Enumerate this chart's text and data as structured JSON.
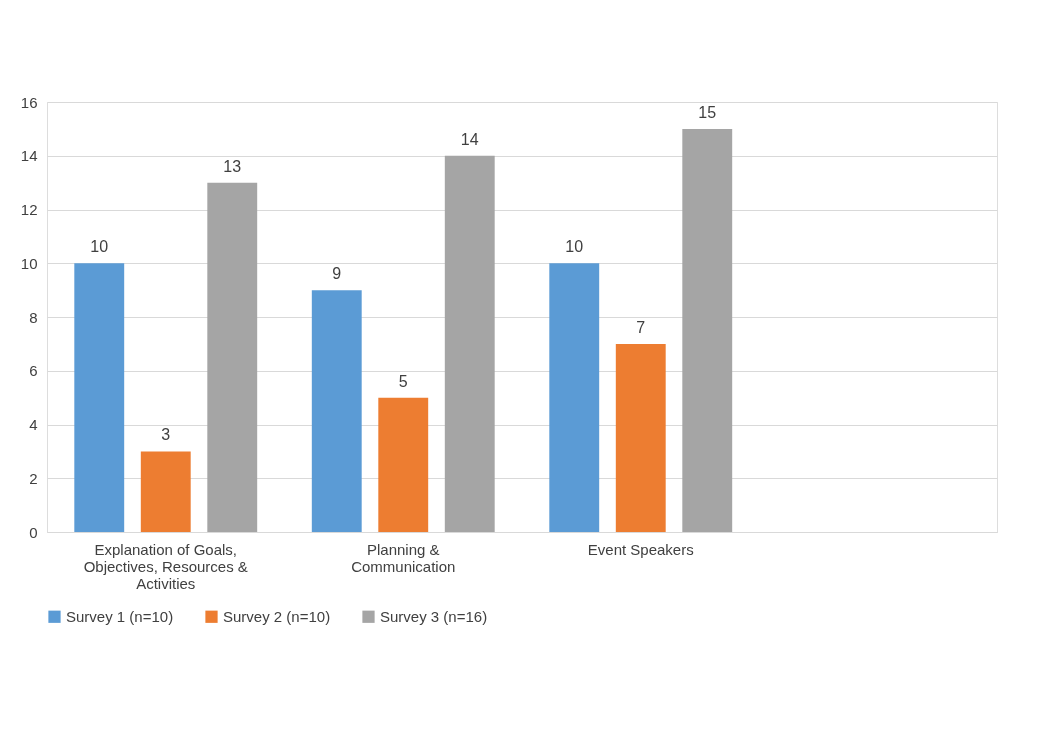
{
  "chart_data": {
    "type": "bar",
    "categories": [
      "Explanation of Goals, Objectives, Resources & Activities",
      "Planning & Communication",
      "Event Speakers",
      null
    ],
    "series": [
      {
        "name": "Survey 1 (n=10)",
        "color": "#5b9bd5",
        "values": [
          10,
          9,
          10,
          null
        ]
      },
      {
        "name": "Survey 2 (n=10)",
        "color": "#ed7d31",
        "values": [
          3,
          5,
          7,
          null
        ]
      },
      {
        "name": "Survey 3 (n=16)",
        "color": "#a5a5a5",
        "values": [
          13,
          14,
          15,
          null
        ]
      }
    ],
    "ylim": [
      0,
      16
    ],
    "yticks": [
      0,
      2,
      4,
      6,
      8,
      10,
      12,
      14,
      16
    ],
    "grid": "y",
    "legend": "bottom",
    "data_labels": true
  }
}
